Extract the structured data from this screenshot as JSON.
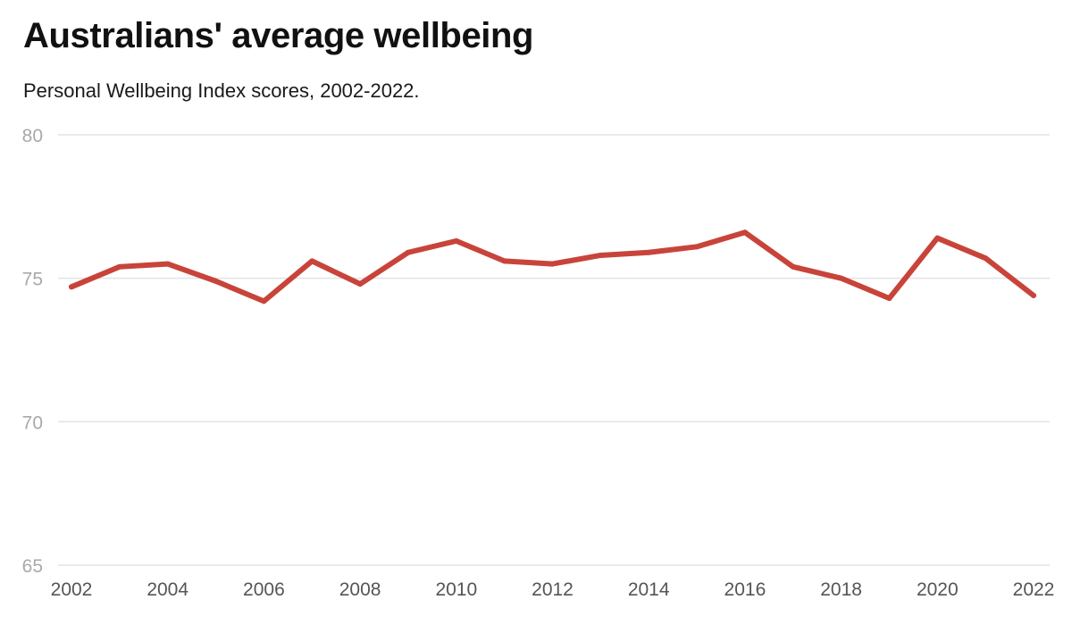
{
  "chart_data": {
    "type": "line",
    "title": "Australians' average wellbeing",
    "subtitle": "Personal Wellbeing Index scores, 2002-2022.",
    "xlabel": "",
    "ylabel": "",
    "x": [
      2002,
      2003,
      2004,
      2005,
      2006,
      2007,
      2008,
      2009,
      2010,
      2011,
      2012,
      2013,
      2014,
      2015,
      2016,
      2017,
      2018,
      2019,
      2020,
      2021,
      2022
    ],
    "series": [
      {
        "name": "",
        "color": "#c8443a",
        "values": [
          74.7,
          75.4,
          75.5,
          74.9,
          74.2,
          75.6,
          74.8,
          75.9,
          76.3,
          75.6,
          75.5,
          75.8,
          75.9,
          76.1,
          76.6,
          75.4,
          75.0,
          74.3,
          76.4,
          75.7,
          74.4
        ]
      }
    ],
    "xlim": [
      2002,
      2022
    ],
    "ylim": [
      65,
      80
    ],
    "x_ticks": [
      "2002",
      "2004",
      "2006",
      "2008",
      "2010",
      "2012",
      "2014",
      "2016",
      "2018",
      "2020",
      "2022"
    ],
    "y_ticks": [
      "65",
      "70",
      "75",
      "80"
    ],
    "grid": true,
    "legend": "none",
    "colors": {
      "line": "#c8443a",
      "grid": "#e3e3e3",
      "y_tick_text": "#a9a9a9",
      "x_tick_text": "#555555"
    }
  }
}
